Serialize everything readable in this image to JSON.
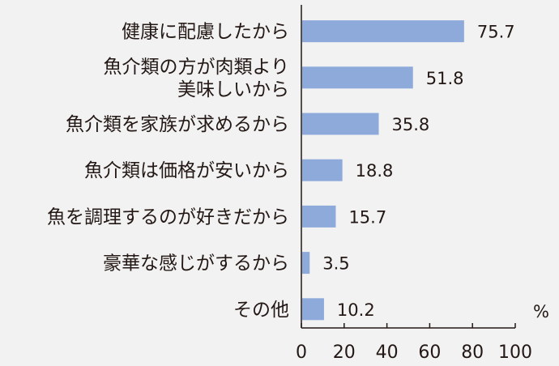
{
  "chart_data": {
    "type": "bar",
    "orientation": "horizontal",
    "categories": [
      [
        "健康に配慮したから"
      ],
      [
        "魚介類の方が肉類より",
        "美味しいから"
      ],
      [
        "魚介類を家族が求めるから"
      ],
      [
        "魚介類は価格が安いから"
      ],
      [
        "魚を調理するのが好きだから"
      ],
      [
        "豪華な感じがするから"
      ],
      [
        "その他"
      ]
    ],
    "values": [
      75.7,
      51.8,
      35.8,
      18.8,
      15.7,
      3.5,
      10.2
    ],
    "value_labels": [
      "75.7",
      "51.8",
      "35.8",
      "18.8",
      "15.7",
      "3.5",
      "10.2"
    ],
    "xlim": [
      0,
      100
    ],
    "xticks": [
      0,
      20,
      40,
      60,
      80,
      100
    ],
    "x_unit": "%",
    "grid": false,
    "bar_color": "#8eaadb",
    "background_color": "#f1f2f1",
    "text_color": "#231815"
  }
}
